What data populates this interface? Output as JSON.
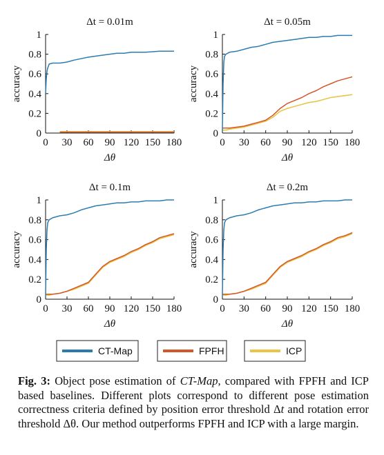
{
  "chart_data": [
    {
      "type": "line",
      "title": "Δt = 0.01m",
      "xlabel": "Δθ",
      "ylabel": "accuracy",
      "xlim": [
        0,
        180
      ],
      "ylim": [
        0,
        1
      ],
      "xticks": [
        "0",
        "30",
        "60",
        "90",
        "120",
        "150",
        "180"
      ],
      "yticks": [
        "0",
        "0.2",
        "0.4",
        "0.6",
        "0.8",
        "1"
      ],
      "x": [
        0,
        1,
        2,
        3,
        5,
        10,
        20,
        30,
        40,
        60,
        80,
        90,
        100,
        110,
        120,
        140,
        160,
        180
      ],
      "series": [
        {
          "name": "CT-Map",
          "values": [
            0.4,
            0.55,
            0.63,
            0.66,
            0.7,
            0.71,
            0.71,
            0.72,
            0.74,
            0.77,
            0.79,
            0.8,
            0.81,
            0.81,
            0.82,
            0.82,
            0.83,
            0.83
          ]
        },
        {
          "name": "FPFH",
          "values": [
            null,
            null,
            null,
            null,
            null,
            null,
            0.01,
            0.01,
            0.01,
            0.01,
            0.01,
            0.01,
            0.01,
            0.01,
            0.01,
            0.01,
            0.01,
            0.01
          ]
        },
        {
          "name": "ICP",
          "values": [
            null,
            null,
            null,
            null,
            null,
            null,
            0.015,
            0.015,
            0.015,
            0.015,
            0.015,
            0.015,
            0.015,
            0.015,
            0.015,
            0.015,
            0.015,
            0.015
          ]
        }
      ]
    },
    {
      "type": "line",
      "title": "Δt = 0.05m",
      "xlabel": "Δθ",
      "ylabel": "accuracy",
      "xlim": [
        0,
        180
      ],
      "ylim": [
        0,
        1
      ],
      "xticks": [
        "0",
        "30",
        "60",
        "90",
        "120",
        "150",
        "180"
      ],
      "yticks": [
        "0",
        "0.2",
        "0.4",
        "0.6",
        "0.8",
        "1"
      ],
      "x": [
        0,
        1,
        2,
        3,
        5,
        10,
        20,
        30,
        40,
        50,
        60,
        70,
        80,
        90,
        100,
        110,
        120,
        130,
        140,
        150,
        160,
        170,
        180
      ],
      "series": [
        {
          "name": "CT-Map",
          "values": [
            0.02,
            0.5,
            0.72,
            0.78,
            0.8,
            0.82,
            0.83,
            0.85,
            0.87,
            0.88,
            0.9,
            0.92,
            0.93,
            0.94,
            0.95,
            0.96,
            0.97,
            0.97,
            0.98,
            0.98,
            0.99,
            0.99,
            0.99
          ]
        },
        {
          "name": "FPFH",
          "values": [
            0.05,
            0.05,
            0.05,
            0.05,
            0.05,
            0.05,
            0.06,
            0.07,
            0.09,
            0.11,
            0.13,
            0.18,
            0.25,
            0.3,
            0.33,
            0.36,
            0.4,
            0.43,
            0.47,
            0.5,
            0.53,
            0.55,
            0.57
          ]
        },
        {
          "name": "ICP",
          "values": [
            0.03,
            0.03,
            0.03,
            0.03,
            0.03,
            0.04,
            0.05,
            0.06,
            0.08,
            0.1,
            0.12,
            0.16,
            0.22,
            0.25,
            0.27,
            0.29,
            0.31,
            0.32,
            0.34,
            0.36,
            0.37,
            0.38,
            0.39
          ]
        }
      ]
    },
    {
      "type": "line",
      "title": "Δt = 0.1m",
      "xlabel": "Δθ",
      "ylabel": "accuracy",
      "xlim": [
        0,
        180
      ],
      "ylim": [
        0,
        1
      ],
      "xticks": [
        "0",
        "30",
        "60",
        "90",
        "120",
        "150",
        "180"
      ],
      "yticks": [
        "0",
        "0.2",
        "0.4",
        "0.6",
        "0.8",
        "1"
      ],
      "x": [
        0,
        1,
        2,
        3,
        5,
        10,
        20,
        30,
        40,
        50,
        60,
        70,
        80,
        90,
        100,
        110,
        120,
        130,
        140,
        150,
        160,
        170,
        180
      ],
      "series": [
        {
          "name": "CT-Map",
          "values": [
            0.02,
            0.5,
            0.7,
            0.77,
            0.8,
            0.82,
            0.84,
            0.85,
            0.87,
            0.9,
            0.92,
            0.94,
            0.95,
            0.96,
            0.97,
            0.97,
            0.98,
            0.98,
            0.99,
            0.99,
            0.99,
            1.0,
            1.0
          ]
        },
        {
          "name": "FPFH",
          "values": [
            0.05,
            0.05,
            0.05,
            0.05,
            0.05,
            0.05,
            0.06,
            0.08,
            0.11,
            0.14,
            0.17,
            0.25,
            0.33,
            0.38,
            0.41,
            0.44,
            0.48,
            0.51,
            0.55,
            0.58,
            0.62,
            0.64,
            0.66
          ]
        },
        {
          "name": "ICP",
          "values": [
            0.04,
            0.04,
            0.04,
            0.04,
            0.04,
            0.05,
            0.06,
            0.08,
            0.1,
            0.13,
            0.16,
            0.24,
            0.32,
            0.37,
            0.4,
            0.43,
            0.47,
            0.5,
            0.54,
            0.57,
            0.61,
            0.63,
            0.65
          ]
        }
      ]
    },
    {
      "type": "line",
      "title": "Δt = 0.2m",
      "xlabel": "Δθ",
      "ylabel": "accuracy",
      "xlim": [
        0,
        180
      ],
      "ylim": [
        0,
        1
      ],
      "xticks": [
        "0",
        "30",
        "60",
        "90",
        "120",
        "150",
        "180"
      ],
      "yticks": [
        "0",
        "0.2",
        "0.4",
        "0.6",
        "0.8",
        "1"
      ],
      "x": [
        0,
        1,
        2,
        3,
        5,
        10,
        20,
        30,
        40,
        50,
        60,
        70,
        80,
        90,
        100,
        110,
        120,
        130,
        140,
        150,
        160,
        170,
        180
      ],
      "series": [
        {
          "name": "CT-Map",
          "values": [
            0.02,
            0.5,
            0.7,
            0.77,
            0.8,
            0.82,
            0.84,
            0.85,
            0.87,
            0.9,
            0.92,
            0.94,
            0.95,
            0.96,
            0.97,
            0.97,
            0.98,
            0.98,
            0.99,
            0.99,
            0.99,
            1.0,
            1.0
          ]
        },
        {
          "name": "FPFH",
          "values": [
            0.05,
            0.05,
            0.05,
            0.05,
            0.05,
            0.05,
            0.06,
            0.08,
            0.11,
            0.14,
            0.17,
            0.25,
            0.33,
            0.38,
            0.41,
            0.44,
            0.48,
            0.51,
            0.55,
            0.58,
            0.62,
            0.64,
            0.67
          ]
        },
        {
          "name": "ICP",
          "values": [
            0.04,
            0.04,
            0.04,
            0.04,
            0.04,
            0.05,
            0.06,
            0.08,
            0.1,
            0.13,
            0.16,
            0.24,
            0.32,
            0.37,
            0.4,
            0.43,
            0.47,
            0.5,
            0.54,
            0.57,
            0.61,
            0.63,
            0.66
          ]
        }
      ]
    }
  ],
  "legend": {
    "items": [
      {
        "label": "CT-Map",
        "color": "#2c7bb0"
      },
      {
        "label": "FPFH",
        "color": "#d2582a"
      },
      {
        "label": "ICP",
        "color": "#e8c547"
      }
    ]
  },
  "caption": {
    "label": "Fig. 3:",
    "part1": " Object pose estimation of ",
    "method": "CT-Map",
    "part2": ", compared with FPFH and ICP based baselines. Different plots correspond to different pose estimation correctness criteria defined by position error threshold Δ",
    "t_symbol": "t",
    "part3": " and rotation error threshold Δθ. Our method outperforms FPFH and ICP with a large margin."
  }
}
